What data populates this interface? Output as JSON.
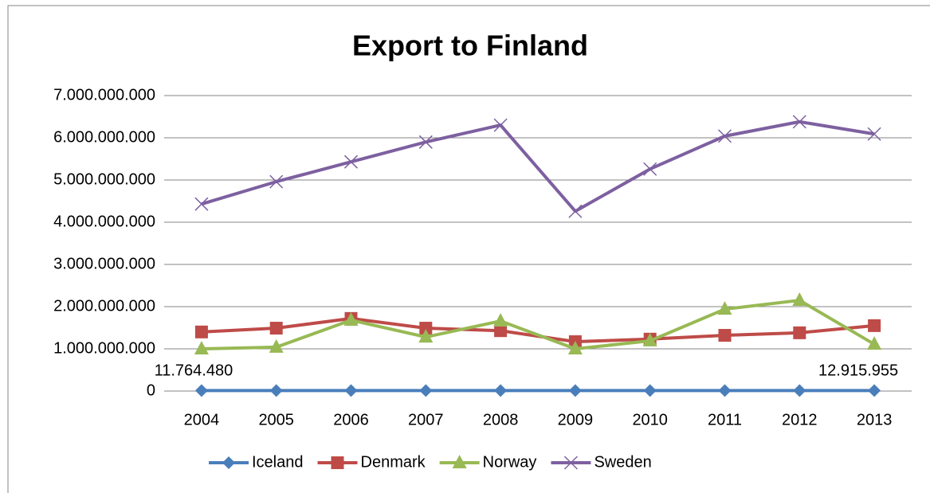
{
  "chart_data": {
    "type": "line",
    "title": "Export to Finland",
    "categories": [
      "2004",
      "2005",
      "2006",
      "2007",
      "2008",
      "2009",
      "2010",
      "2011",
      "2012",
      "2013"
    ],
    "series": [
      {
        "name": "Iceland",
        "color": "#4a7ebb",
        "marker": "diamond",
        "values": [
          11764480,
          12000000,
          12000000,
          12000000,
          12000000,
          12000000,
          12000000,
          12000000,
          12000000,
          12915955
        ],
        "value_labels": [
          "11.764.480",
          null,
          null,
          null,
          null,
          null,
          null,
          null,
          null,
          "12.915.955"
        ]
      },
      {
        "name": "Denmark",
        "color": "#be4b48",
        "marker": "square",
        "values": [
          1400000000,
          1490000000,
          1720000000,
          1490000000,
          1430000000,
          1170000000,
          1230000000,
          1320000000,
          1380000000,
          1550000000
        ]
      },
      {
        "name": "Norway",
        "color": "#98b954",
        "marker": "triangle",
        "values": [
          1000000000,
          1040000000,
          1680000000,
          1280000000,
          1660000000,
          1000000000,
          1190000000,
          1940000000,
          2150000000,
          1110000000
        ]
      },
      {
        "name": "Sweden",
        "color": "#7d60a0",
        "marker": "x",
        "values": [
          4430000000,
          4960000000,
          5430000000,
          5900000000,
          6300000000,
          4260000000,
          5260000000,
          6040000000,
          6380000000,
          6090000000
        ]
      }
    ],
    "ylim": [
      0,
      7000000000
    ],
    "yticks": [
      0,
      {
        "value": 1000000000,
        "label": "1.000.000.000"
      },
      {
        "value": 2000000000,
        "label": "2.000.000.000"
      },
      {
        "value": 3000000000,
        "label": "3.000.000.000"
      },
      {
        "value": 4000000000,
        "label": "4.000.000.000"
      },
      {
        "value": 5000000000,
        "label": "5.000.000.000"
      },
      {
        "value": 6000000000,
        "label": "6.000.000.000"
      },
      {
        "value": 7000000000,
        "label": "7.000.000.000"
      }
    ],
    "grid": true,
    "legend": "bottom"
  }
}
